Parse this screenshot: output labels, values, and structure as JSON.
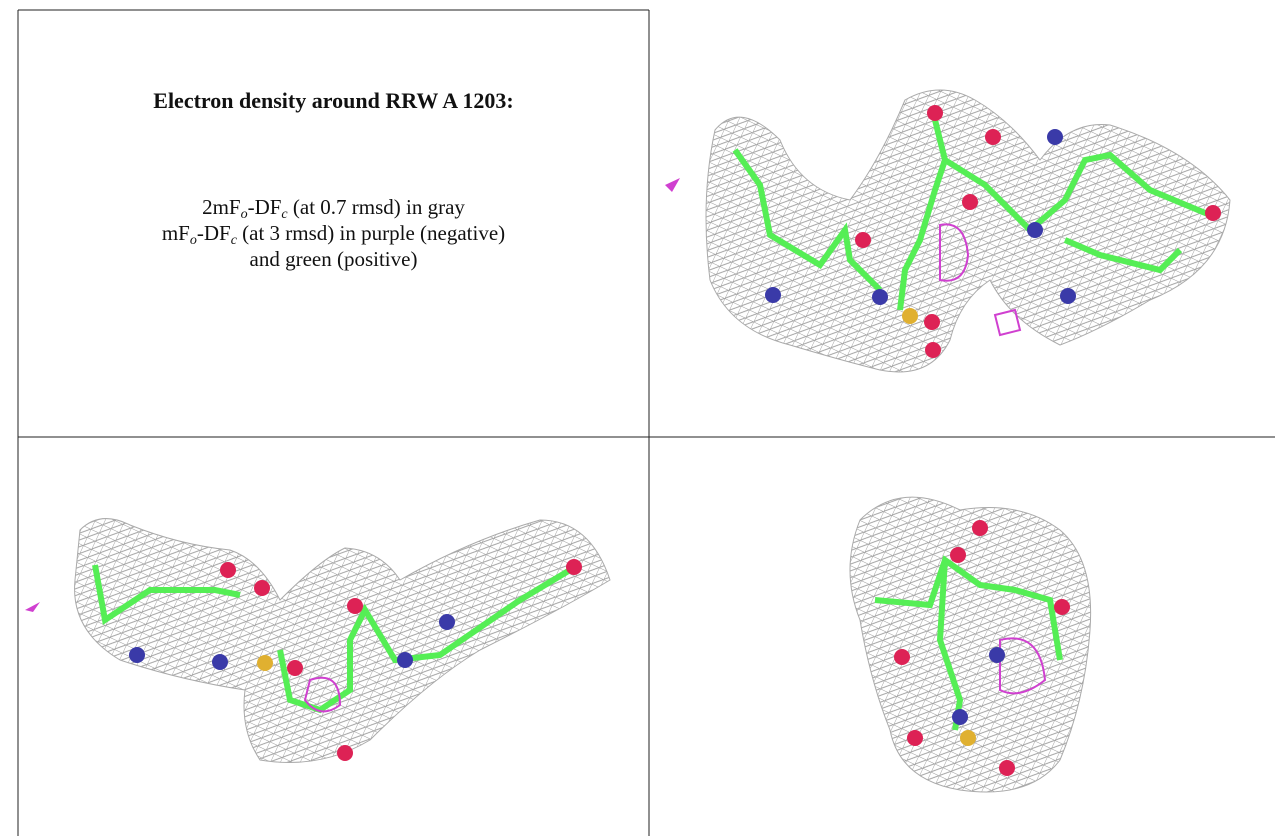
{
  "caption": {
    "title": "Electron density around RRW A 1203:",
    "lines": [
      [
        {
          "text": "2mF"
        },
        {
          "text": "o",
          "subscript": true
        },
        {
          "text": "-DF"
        },
        {
          "text": "c",
          "subscript": true
        },
        {
          "text": " (at 0.7 rmsd) in gray"
        }
      ],
      [
        {
          "text": "mF"
        },
        {
          "text": "o",
          "subscript": true
        },
        {
          "text": "-DF"
        },
        {
          "text": "c",
          "subscript": true
        },
        {
          "text": " (at 3 rmsd) in purple (negative)"
        }
      ],
      [
        {
          "text": "and green (positive)"
        }
      ]
    ]
  }
}
